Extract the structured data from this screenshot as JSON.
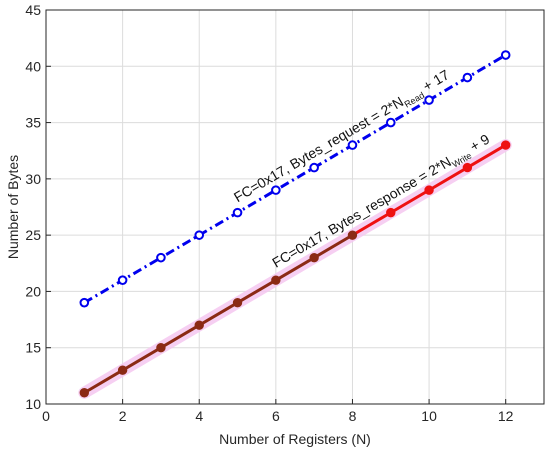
{
  "chart_data": {
    "type": "line",
    "xlabel": "Number of Registers (N)",
    "ylabel": "Number of Bytes",
    "xlim": [
      0,
      13
    ],
    "ylim": [
      10,
      45
    ],
    "xticks": [
      0,
      2,
      4,
      6,
      8,
      10,
      12
    ],
    "yticks": [
      10,
      15,
      20,
      25,
      30,
      35,
      40,
      45
    ],
    "grid": true,
    "series": [
      {
        "key": "request",
        "x": [
          1,
          2,
          3,
          4,
          5,
          6,
          7,
          8,
          9,
          10,
          11,
          12
        ],
        "values": [
          19,
          21,
          23,
          25,
          27,
          29,
          31,
          33,
          35,
          37,
          39,
          41
        ],
        "color": "#0000ee",
        "line_style": "dash-dot",
        "marker": "open-circle"
      },
      {
        "key": "response",
        "x": [
          1,
          2,
          3,
          4,
          5,
          6,
          7,
          8,
          9,
          10,
          11,
          12
        ],
        "values": [
          11,
          13,
          15,
          17,
          19,
          21,
          23,
          25,
          27,
          29,
          31,
          33
        ],
        "color": "#8b2a14",
        "color_end": "#ee1111",
        "highlight": "#f4c7f0",
        "line_style": "solid",
        "marker": "filled-circle"
      }
    ],
    "annotations": [
      {
        "key": "request",
        "main": "FC=0x17, Bytes_request = 2*N",
        "sub": "Read",
        "tail": " + 17"
      },
      {
        "key": "response",
        "main": "FC=0x17, Bytes_response = 2*N",
        "sub": "Write",
        "tail": " + 9"
      }
    ]
  }
}
